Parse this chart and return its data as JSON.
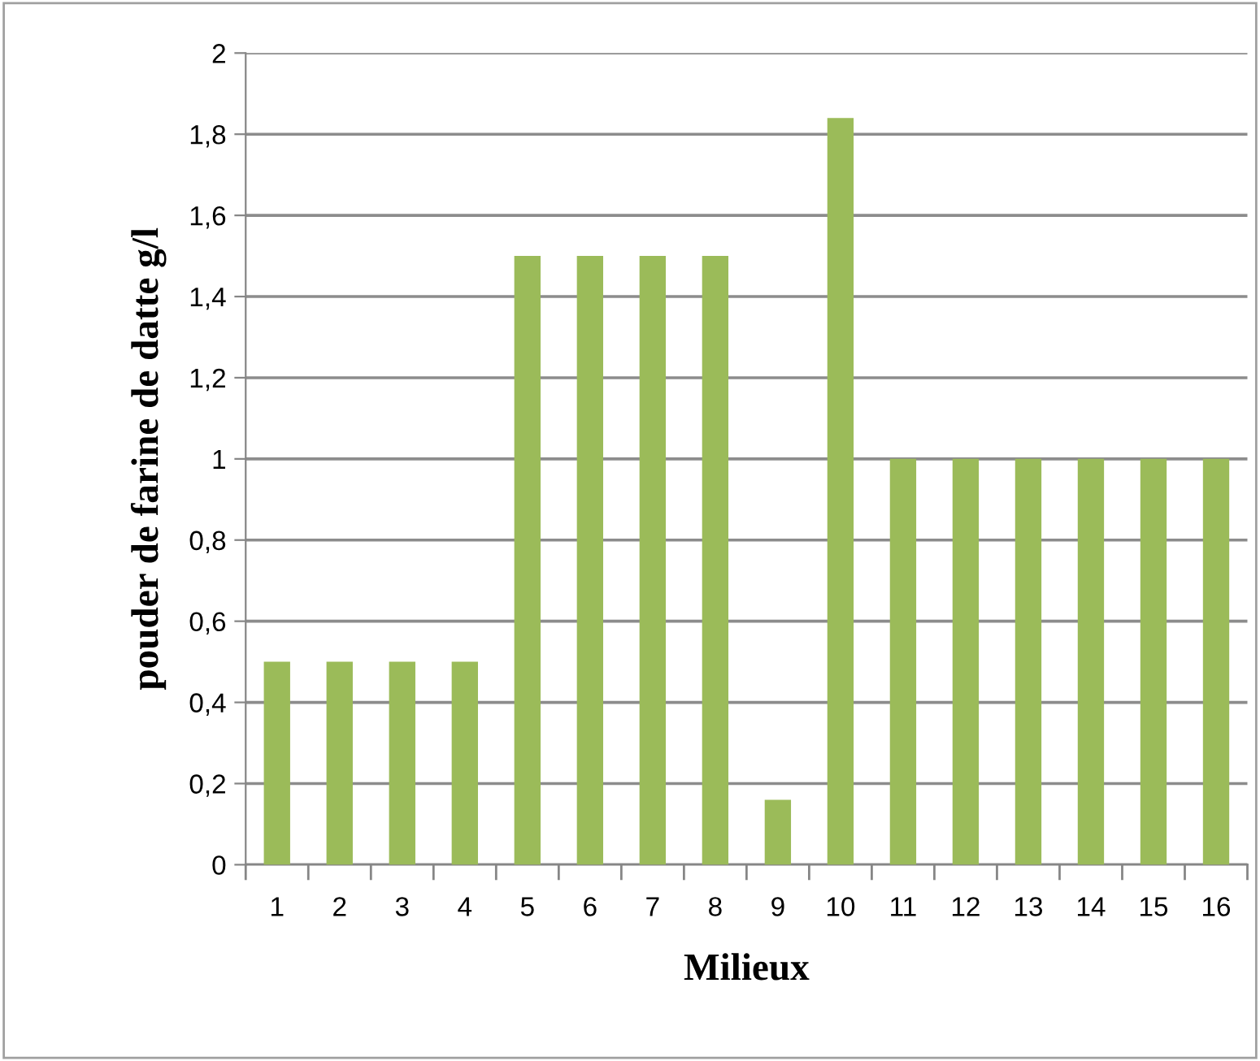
{
  "chart_data": {
    "type": "bar",
    "xlabel": "Milieux",
    "ylabel": "pouder de farine de datte g/l",
    "categories": [
      "1",
      "2",
      "3",
      "4",
      "5",
      "6",
      "7",
      "8",
      "9",
      "10",
      "11",
      "12",
      "13",
      "14",
      "15",
      "16"
    ],
    "values": [
      0.5,
      0.5,
      0.5,
      0.5,
      1.5,
      1.5,
      1.5,
      1.5,
      0.16,
      1.84,
      1,
      1,
      1,
      1,
      1,
      1
    ],
    "color": "#9bbb59",
    "ylim": [
      0,
      2
    ],
    "yticks": [
      0,
      {
        "value": 0.2,
        "label": "0,2"
      },
      {
        "value": 0.4,
        "label": "0,4"
      },
      {
        "value": 0.6,
        "label": "0,6"
      },
      {
        "value": 0.8,
        "label": "0,8"
      },
      1,
      {
        "value": 1.2,
        "label": "1,2"
      },
      {
        "value": 1.4,
        "label": "1,4"
      },
      {
        "value": 1.6,
        "label": "1,6"
      },
      {
        "value": 1.8,
        "label": "1,8"
      },
      2
    ],
    "grid": "y",
    "legend": false
  }
}
